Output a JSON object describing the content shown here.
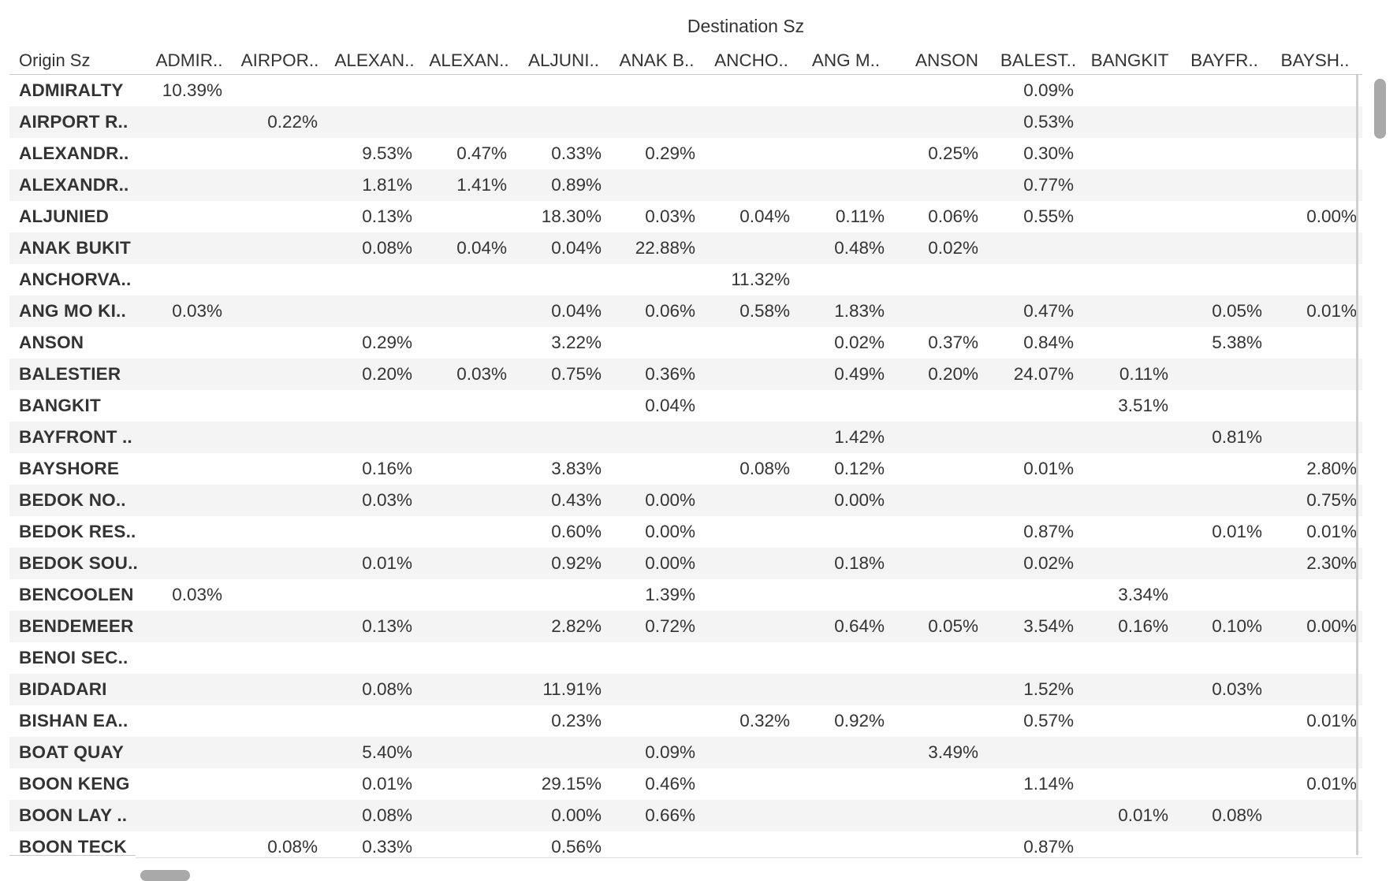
{
  "chart_data": {
    "type": "table",
    "title": "Destination Sz",
    "row_header": "Origin Sz",
    "columns": [
      "ADMIR..",
      "AIRPOR..",
      "ALEXAN..",
      "ALEXAN..",
      "ALJUNI..",
      "ANAK B..",
      "ANCHO..",
      "ANG M..",
      "ANSON",
      "BALEST..",
      "BANGKIT",
      "BAYFR..",
      "BAYSH.."
    ],
    "rows": [
      {
        "label": "ADMIRALTY",
        "values": [
          "10.39%",
          "",
          "",
          "",
          "",
          "",
          "",
          "",
          "",
          "0.09%",
          "",
          "",
          ""
        ]
      },
      {
        "label": "AIRPORT R..",
        "values": [
          "",
          "0.22%",
          "",
          "",
          "",
          "",
          "",
          "",
          "",
          "0.53%",
          "",
          "",
          ""
        ]
      },
      {
        "label": "ALEXANDR..",
        "values": [
          "",
          "",
          "9.53%",
          "0.47%",
          "0.33%",
          "0.29%",
          "",
          "",
          "0.25%",
          "0.30%",
          "",
          "",
          ""
        ]
      },
      {
        "label": "ALEXANDR..",
        "values": [
          "",
          "",
          "1.81%",
          "1.41%",
          "0.89%",
          "",
          "",
          "",
          "",
          "0.77%",
          "",
          "",
          ""
        ]
      },
      {
        "label": "ALJUNIED",
        "values": [
          "",
          "",
          "0.13%",
          "",
          "18.30%",
          "0.03%",
          "0.04%",
          "0.11%",
          "0.06%",
          "0.55%",
          "",
          "",
          "0.00%"
        ]
      },
      {
        "label": "ANAK BUKIT",
        "values": [
          "",
          "",
          "0.08%",
          "0.04%",
          "0.04%",
          "22.88%",
          "",
          "0.48%",
          "0.02%",
          "",
          "",
          "",
          ""
        ]
      },
      {
        "label": "ANCHORVA..",
        "values": [
          "",
          "",
          "",
          "",
          "",
          "",
          "11.32%",
          "",
          "",
          "",
          "",
          "",
          ""
        ]
      },
      {
        "label": "ANG MO KI..",
        "values": [
          "0.03%",
          "",
          "",
          "",
          "0.04%",
          "0.06%",
          "0.58%",
          "1.83%",
          "",
          "0.47%",
          "",
          "0.05%",
          "0.01%"
        ]
      },
      {
        "label": "ANSON",
        "values": [
          "",
          "",
          "0.29%",
          "",
          "3.22%",
          "",
          "",
          "0.02%",
          "0.37%",
          "0.84%",
          "",
          "5.38%",
          ""
        ]
      },
      {
        "label": "BALESTIER",
        "values": [
          "",
          "",
          "0.20%",
          "0.03%",
          "0.75%",
          "0.36%",
          "",
          "0.49%",
          "0.20%",
          "24.07%",
          "0.11%",
          "",
          ""
        ]
      },
      {
        "label": "BANGKIT",
        "values": [
          "",
          "",
          "",
          "",
          "",
          "0.04%",
          "",
          "",
          "",
          "",
          "3.51%",
          "",
          ""
        ]
      },
      {
        "label": "BAYFRONT ..",
        "values": [
          "",
          "",
          "",
          "",
          "",
          "",
          "",
          "1.42%",
          "",
          "",
          "",
          "0.81%",
          ""
        ]
      },
      {
        "label": "BAYSHORE",
        "values": [
          "",
          "",
          "0.16%",
          "",
          "3.83%",
          "",
          "0.08%",
          "0.12%",
          "",
          "0.01%",
          "",
          "",
          "2.80%"
        ]
      },
      {
        "label": "BEDOK NO..",
        "values": [
          "",
          "",
          "0.03%",
          "",
          "0.43%",
          "0.00%",
          "",
          "0.00%",
          "",
          "",
          "",
          "",
          "0.75%"
        ]
      },
      {
        "label": "BEDOK RES..",
        "values": [
          "",
          "",
          "",
          "",
          "0.60%",
          "0.00%",
          "",
          "",
          "",
          "0.87%",
          "",
          "0.01%",
          "0.01%"
        ]
      },
      {
        "label": "BEDOK SOU..",
        "values": [
          "",
          "",
          "0.01%",
          "",
          "0.92%",
          "0.00%",
          "",
          "0.18%",
          "",
          "0.02%",
          "",
          "",
          "2.30%"
        ]
      },
      {
        "label": "BENCOOLEN",
        "values": [
          "0.03%",
          "",
          "",
          "",
          "",
          "1.39%",
          "",
          "",
          "",
          "",
          "3.34%",
          "",
          ""
        ]
      },
      {
        "label": "BENDEMEER",
        "values": [
          "",
          "",
          "0.13%",
          "",
          "2.82%",
          "0.72%",
          "",
          "0.64%",
          "0.05%",
          "3.54%",
          "0.16%",
          "0.10%",
          "0.00%"
        ]
      },
      {
        "label": "BENOI SEC..",
        "values": [
          "",
          "",
          "",
          "",
          "",
          "",
          "",
          "",
          "",
          "",
          "",
          "",
          ""
        ]
      },
      {
        "label": "BIDADARI",
        "values": [
          "",
          "",
          "0.08%",
          "",
          "11.91%",
          "",
          "",
          "",
          "",
          "1.52%",
          "",
          "0.03%",
          ""
        ]
      },
      {
        "label": "BISHAN EA..",
        "values": [
          "",
          "",
          "",
          "",
          "0.23%",
          "",
          "0.32%",
          "0.92%",
          "",
          "0.57%",
          "",
          "",
          "0.01%"
        ]
      },
      {
        "label": "BOAT QUAY",
        "values": [
          "",
          "",
          "5.40%",
          "",
          "",
          "0.09%",
          "",
          "",
          "3.49%",
          "",
          "",
          "",
          ""
        ]
      },
      {
        "label": "BOON KENG",
        "values": [
          "",
          "",
          "0.01%",
          "",
          "29.15%",
          "0.46%",
          "",
          "",
          "",
          "1.14%",
          "",
          "",
          "0.01%"
        ]
      },
      {
        "label": "BOON LAY ..",
        "values": [
          "",
          "",
          "0.08%",
          "",
          "0.00%",
          "0.66%",
          "",
          "",
          "",
          "",
          "0.01%",
          "0.08%",
          ""
        ]
      },
      {
        "label": "BOON TECK",
        "values": [
          "",
          "0.08%",
          "0.33%",
          "",
          "0.56%",
          "",
          "",
          "",
          "",
          "0.87%",
          "",
          "",
          ""
        ]
      }
    ]
  }
}
